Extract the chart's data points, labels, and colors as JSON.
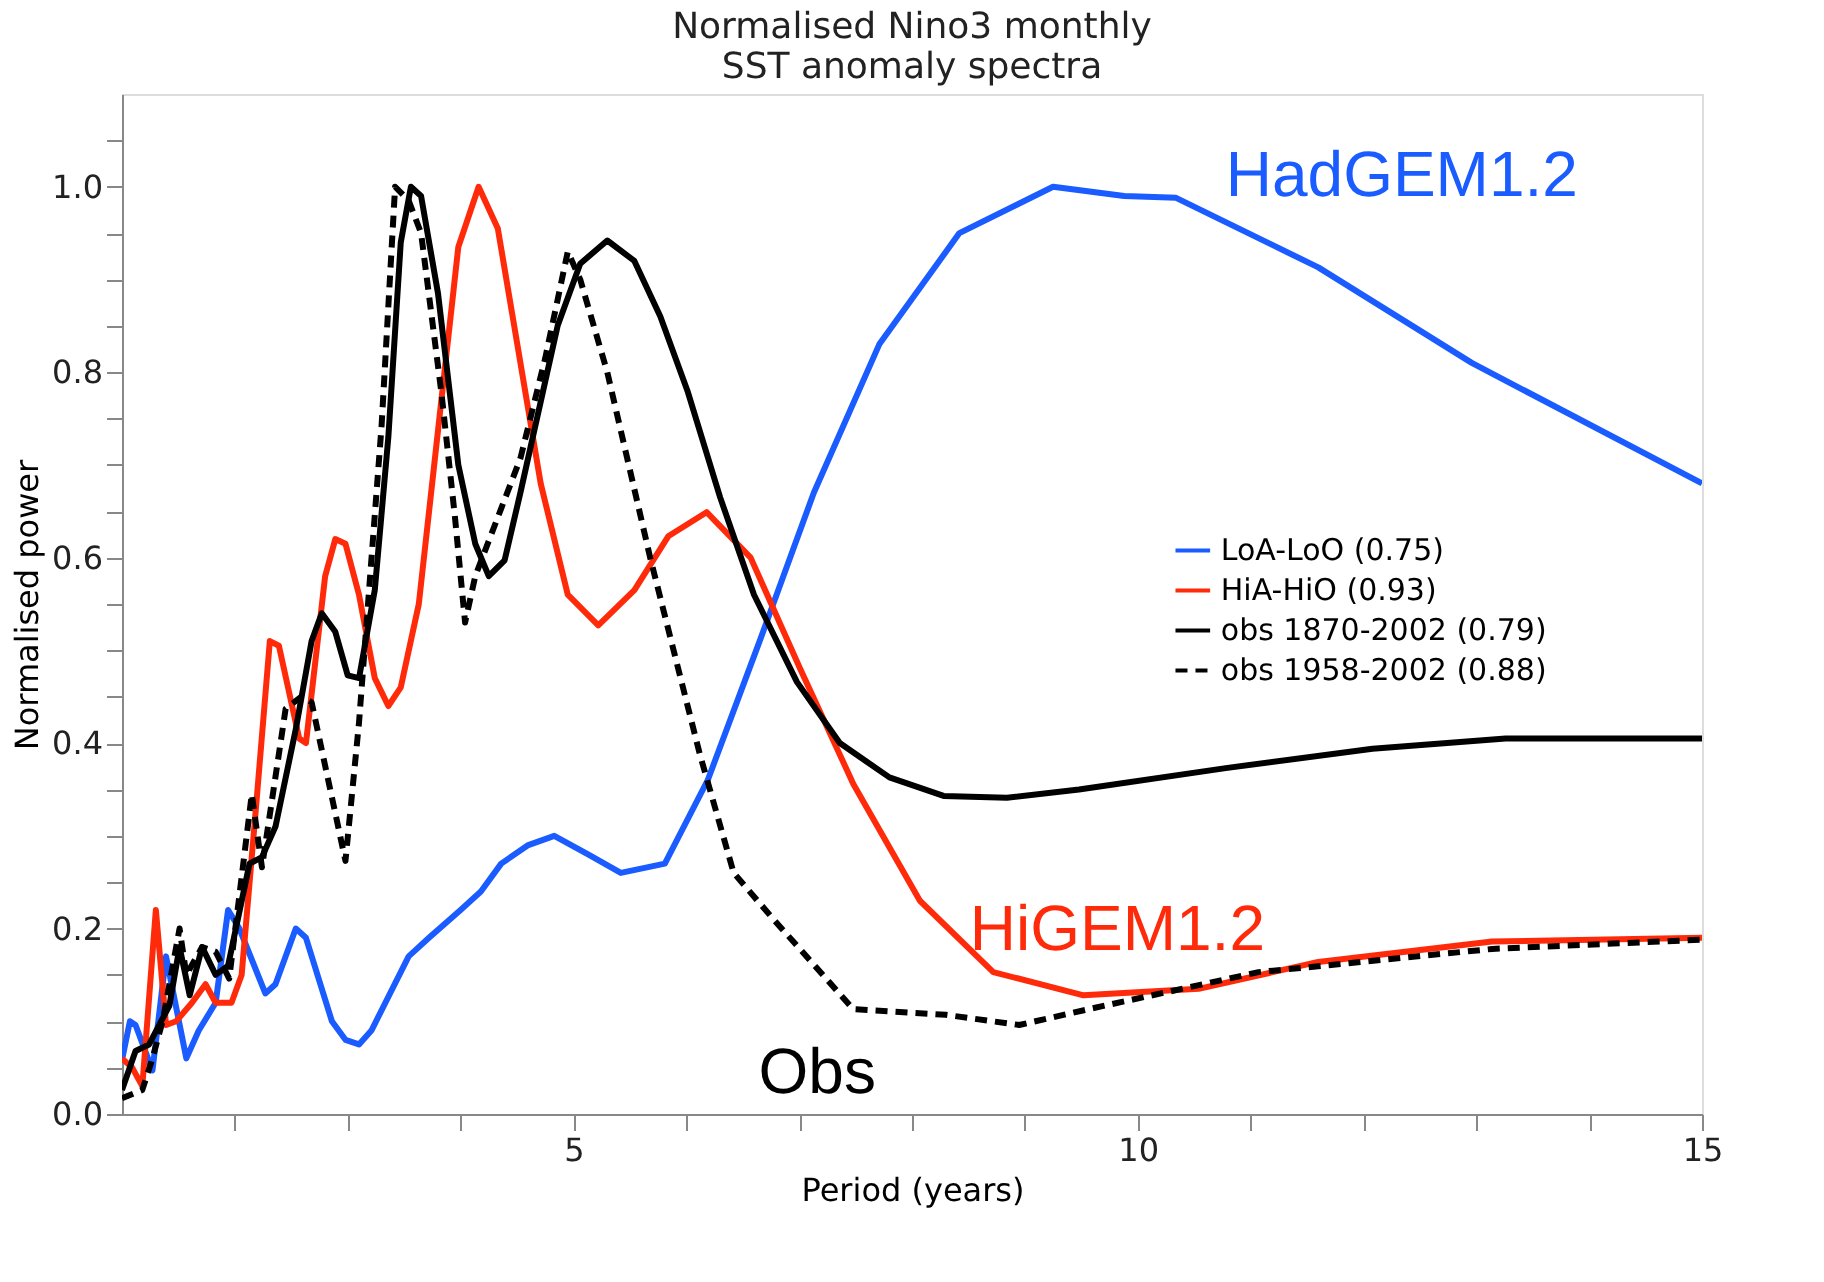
{
  "chart_data": {
    "type": "line",
    "title": "Normalised Nino3 monthly\nSST anomaly spectra",
    "xlabel": "Period (years)",
    "ylabel": "Normalised power",
    "xlim": [
      1,
      15
    ],
    "ylim": [
      0,
      1.1
    ],
    "xticks": [
      {
        "value": 2,
        "label": null
      },
      {
        "value": 3,
        "label": null
      },
      {
        "value": 4,
        "label": null
      },
      5,
      {
        "value": 6,
        "label": null
      },
      {
        "value": 7,
        "label": null
      },
      {
        "value": 8,
        "label": null
      },
      {
        "value": 9,
        "label": null
      },
      10,
      {
        "value": 11,
        "label": null
      },
      {
        "value": 12,
        "label": null
      },
      {
        "value": 13,
        "label": null
      },
      {
        "value": 14,
        "label": null
      },
      15
    ],
    "yticks": [
      {
        "value": 0,
        "label": "0.0"
      },
      {
        "value": 0.05,
        "label": null
      },
      {
        "value": 0.1,
        "label": null
      },
      {
        "value": 0.15,
        "label": null
      },
      {
        "value": 0.2,
        "label": "0.2"
      },
      {
        "value": 0.25,
        "label": null
      },
      {
        "value": 0.3,
        "label": null
      },
      {
        "value": 0.35,
        "label": null
      },
      {
        "value": 0.4,
        "label": "0.4"
      },
      {
        "value": 0.45,
        "label": null
      },
      {
        "value": 0.5,
        "label": null
      },
      {
        "value": 0.55,
        "label": null
      },
      {
        "value": 0.6,
        "label": "0.6"
      },
      {
        "value": 0.65,
        "label": null
      },
      {
        "value": 0.7,
        "label": null
      },
      {
        "value": 0.75,
        "label": null
      },
      {
        "value": 0.8,
        "label": "0.8"
      },
      {
        "value": 0.85,
        "label": null
      },
      {
        "value": 0.9,
        "label": null
      },
      {
        "value": 0.95,
        "label": null
      },
      {
        "value": 1.0,
        "label": "1.0"
      },
      {
        "value": 1.05,
        "label": null
      }
    ],
    "grid": false,
    "legend": "right",
    "marker": "none",
    "series": [
      {
        "name": "LoA-LoO (0.75)",
        "color": "#1a5cff",
        "line_style": "solid",
        "x": [
          1.0,
          1.07,
          1.12,
          1.27,
          1.39,
          1.57,
          1.68,
          1.83,
          1.94,
          2.04,
          2.27,
          2.36,
          2.54,
          2.63,
          2.86,
          2.98,
          3.1,
          3.21,
          3.54,
          3.72,
          4.0,
          4.18,
          4.36,
          4.6,
          4.83,
          5.13,
          5.42,
          5.81,
          6.19,
          6.65,
          7.13,
          7.71,
          8.42,
          9.25,
          9.88,
          10.34,
          11.6,
          12.96,
          15.0
        ],
        "values": [
          0.058,
          0.1,
          0.096,
          0.047,
          0.17,
          0.06,
          0.09,
          0.12,
          0.22,
          0.2,
          0.13,
          0.14,
          0.2,
          0.19,
          0.1,
          0.08,
          0.075,
          0.09,
          0.17,
          0.19,
          0.22,
          0.24,
          0.27,
          0.29,
          0.3,
          0.28,
          0.26,
          0.27,
          0.36,
          0.51,
          0.67,
          0.83,
          0.95,
          1.0,
          0.99,
          0.988,
          0.913,
          0.81,
          0.68
        ]
      },
      {
        "name": "HiA-HiO (0.93)",
        "color": "#ff2a0a",
        "line_style": "solid",
        "x": [
          1.0,
          1.09,
          1.18,
          1.3,
          1.39,
          1.48,
          1.62,
          1.74,
          1.83,
          1.97,
          2.06,
          2.18,
          2.31,
          2.39,
          2.57,
          2.63,
          2.8,
          2.89,
          2.98,
          3.1,
          3.24,
          3.36,
          3.47,
          3.63,
          3.98,
          4.16,
          4.33,
          4.71,
          4.95,
          5.22,
          5.54,
          5.84,
          6.18,
          6.57,
          7.01,
          7.48,
          8.07,
          8.72,
          9.52,
          10.54,
          11.6,
          13.14,
          15.0
        ],
        "values": [
          0.06,
          0.05,
          0.03,
          0.22,
          0.096,
          0.1,
          0.12,
          0.14,
          0.12,
          0.12,
          0.15,
          0.32,
          0.51,
          0.505,
          0.405,
          0.4,
          0.58,
          0.62,
          0.615,
          0.56,
          0.47,
          0.44,
          0.46,
          0.55,
          0.935,
          1.0,
          0.955,
          0.68,
          0.56,
          0.527,
          0.565,
          0.623,
          0.649,
          0.6,
          0.48,
          0.356,
          0.23,
          0.153,
          0.128,
          0.135,
          0.164,
          0.186,
          0.19
        ]
      },
      {
        "name": "obs 1870-2002 (0.79)",
        "color": "#000000",
        "line_style": "solid",
        "x": [
          1.0,
          1.12,
          1.24,
          1.33,
          1.42,
          1.51,
          1.6,
          1.71,
          1.83,
          1.94,
          2.13,
          2.24,
          2.36,
          2.54,
          2.68,
          2.77,
          2.89,
          3.0,
          3.1,
          3.24,
          3.36,
          3.47,
          3.56,
          3.65,
          3.8,
          3.98,
          4.13,
          4.25,
          4.39,
          4.53,
          4.86,
          5.06,
          5.3,
          5.54,
          5.77,
          6.01,
          6.3,
          6.6,
          6.98,
          7.36,
          7.8,
          8.28,
          8.84,
          9.48,
          10.78,
          12.08,
          13.26,
          15.0
        ],
        "values": [
          0.026,
          0.068,
          0.075,
          0.096,
          0.117,
          0.18,
          0.128,
          0.18,
          0.15,
          0.16,
          0.27,
          0.277,
          0.31,
          0.415,
          0.51,
          0.54,
          0.52,
          0.473,
          0.47,
          0.565,
          0.73,
          0.94,
          1.0,
          0.99,
          0.885,
          0.7,
          0.615,
          0.58,
          0.597,
          0.67,
          0.85,
          0.917,
          0.942,
          0.92,
          0.86,
          0.78,
          0.665,
          0.56,
          0.466,
          0.4,
          0.363,
          0.343,
          0.341,
          0.35,
          0.373,
          0.394,
          0.405,
          0.405
        ]
      },
      {
        "name": "obs 1958-2002 (0.88)",
        "color": "#000000",
        "line_style": "dashed",
        "x": [
          1.0,
          1.18,
          1.27,
          1.36,
          1.51,
          1.57,
          1.71,
          1.83,
          1.95,
          2.15,
          2.24,
          2.45,
          2.59,
          2.68,
          2.98,
          3.1,
          3.3,
          3.42,
          3.54,
          3.65,
          3.83,
          3.95,
          4.04,
          4.13,
          4.53,
          4.75,
          4.95,
          5.06,
          5.3,
          5.68,
          6.12,
          6.42,
          6.78,
          7.48,
          8.3,
          8.95,
          9.6,
          11.07,
          13.14,
          15.0
        ],
        "values": [
          0.017,
          0.026,
          0.06,
          0.1,
          0.2,
          0.15,
          0.18,
          0.175,
          0.146,
          0.345,
          0.266,
          0.437,
          0.45,
          0.444,
          0.273,
          0.422,
          0.742,
          1.0,
          0.985,
          0.95,
          0.778,
          0.644,
          0.53,
          0.58,
          0.707,
          0.815,
          0.93,
          0.9,
          0.8,
          0.6,
          0.388,
          0.26,
          0.209,
          0.113,
          0.107,
          0.096,
          0.114,
          0.153,
          0.178,
          0.188
        ]
      }
    ],
    "annotations": [
      "HadGEM1.2",
      "HiGEM1.2",
      "Obs"
    ]
  }
}
